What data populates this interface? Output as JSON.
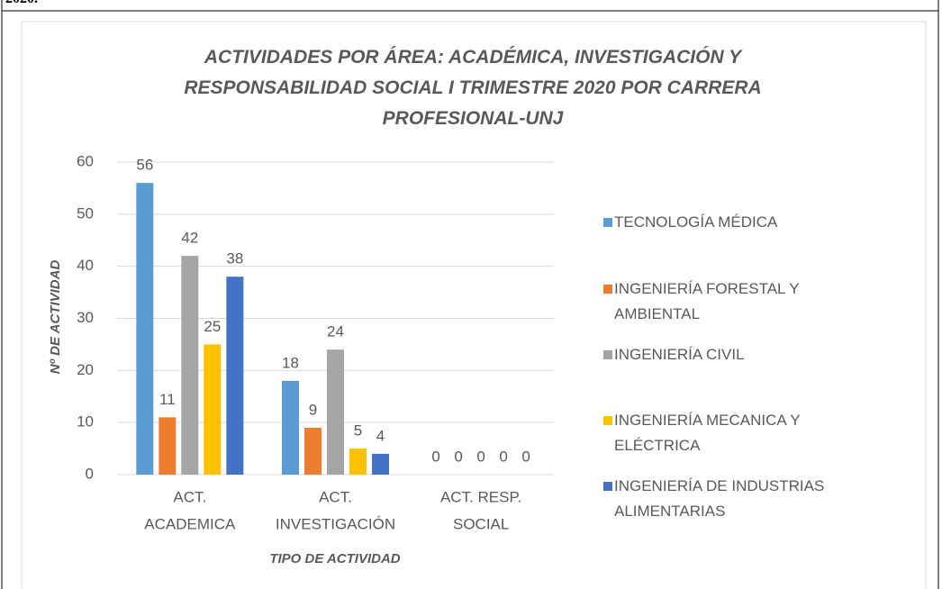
{
  "header_text": "2020.",
  "chart_data": {
    "type": "bar",
    "title": "ACTIVIDADES POR ÁREA: ACADÉMICA, INVESTIGACIÓN Y RESPONSABILIDAD SOCIAL I TRIMESTRE 2020 POR CARRERA PROFESIONAL-UNJ",
    "xlabel": "TIPO DE ACTIVIDAD",
    "ylabel": "Nº DE ACTIVIDAD",
    "categories": [
      [
        "ACT.",
        "ACADEMICA"
      ],
      [
        "ACT.",
        "INVESTIGACIÓN"
      ],
      [
        "ACT. RESP.",
        "SOCIAL"
      ]
    ],
    "series": [
      {
        "name": "TECNOLOGÍA MÉDICA",
        "color": "#5b9bd5",
        "values": [
          56,
          18,
          0
        ]
      },
      {
        "name": "INGENIERÍA FORESTAL Y AMBIENTAL",
        "color": "#ed7d31",
        "values": [
          11,
          9,
          0
        ]
      },
      {
        "name": "INGENIERÍA CIVIL",
        "color": "#a5a5a5",
        "values": [
          42,
          24,
          0
        ]
      },
      {
        "name": "INGENIERÍA MECANICA Y ELÉCTRICA",
        "color": "#ffc000",
        "values": [
          25,
          5,
          0
        ]
      },
      {
        "name": "INGENIERÍA DE INDUSTRIAS ALIMENTARIAS",
        "color": "#4472c4",
        "values": [
          38,
          4,
          0
        ]
      }
    ],
    "ylim": [
      0,
      60
    ],
    "yticks": [
      0,
      10,
      20,
      30,
      40,
      50,
      60
    ],
    "grid": true,
    "legend": "right"
  }
}
